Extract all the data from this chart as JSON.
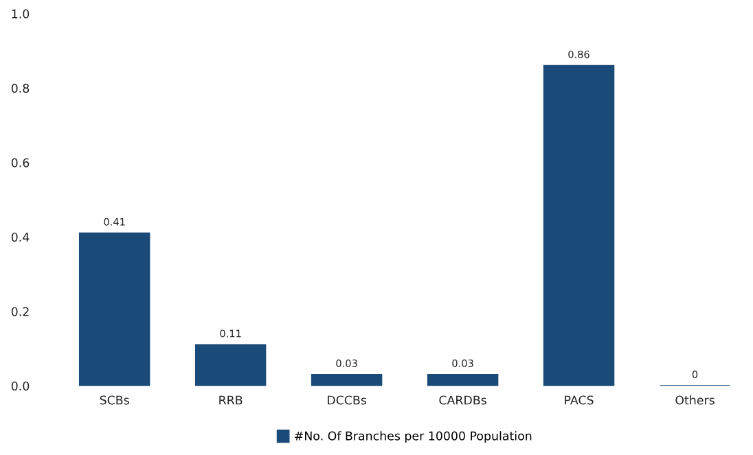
{
  "chart_data": {
    "type": "bar",
    "categories": [
      "SCBs",
      "RRB",
      "DCCBs",
      "CARDBs",
      "PACS",
      "Others"
    ],
    "series": [
      {
        "name": "#No. Of Branches per 10000 Population",
        "color": "#1a4a78",
        "values": [
          0.41,
          0.11,
          0.03,
          0.03,
          0.86,
          0
        ]
      }
    ],
    "ylim": [
      0,
      1.0
    ],
    "yticks": [
      {
        "value": 0,
        "label": "0.0"
      },
      0.2,
      0.4,
      0.6,
      0.8,
      {
        "value": 1.0,
        "label": "1.0"
      }
    ],
    "data_labels": true,
    "grid": false,
    "legend": "bottom"
  }
}
